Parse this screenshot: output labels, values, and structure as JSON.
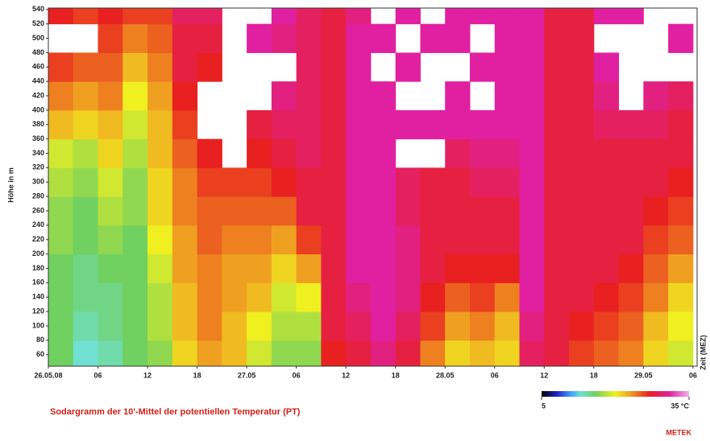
{
  "chart_data": {
    "type": "heatmap",
    "title": "Sodargramm der 10'-Mittel der potentiellen Temperatur (PT)",
    "ylabel": "Höhe in m",
    "xlabel": "Zeit (MEZ)",
    "brand": "METEK",
    "xlim": [
      0,
      78.5
    ],
    "ylim": [
      44,
      542
    ],
    "xticks": [
      {
        "value": 0,
        "label": "26.05.08"
      },
      {
        "value": 6,
        "label": "06"
      },
      {
        "value": 12,
        "label": "12"
      },
      {
        "value": 18,
        "label": "18"
      },
      {
        "value": 24,
        "label": "27.05"
      },
      {
        "value": 30,
        "label": "06"
      },
      {
        "value": 36,
        "label": "12"
      },
      {
        "value": 42,
        "label": "18"
      },
      {
        "value": 48,
        "label": "28.05"
      },
      {
        "value": 54,
        "label": "06"
      },
      {
        "value": 60,
        "label": "12"
      },
      {
        "value": 66,
        "label": "18"
      },
      {
        "value": 72,
        "label": "29.05"
      },
      {
        "value": 78,
        "label": "06"
      }
    ],
    "yticks": [
      60,
      80,
      100,
      120,
      140,
      160,
      180,
      200,
      220,
      240,
      260,
      280,
      300,
      320,
      340,
      360,
      380,
      400,
      420,
      440,
      460,
      480,
      500,
      520,
      540
    ],
    "x_bins": [
      0,
      3,
      6,
      9,
      12,
      15,
      18,
      21,
      24,
      27,
      30,
      33,
      36,
      39,
      42,
      45,
      48,
      51,
      54,
      57,
      60,
      63,
      66,
      69,
      72,
      75,
      78
    ],
    "y_bins": [
      44,
      80,
      120,
      160,
      200,
      240,
      280,
      320,
      360,
      400,
      440,
      480,
      520,
      542
    ],
    "values": [
      [
        16,
        16,
        16,
        16,
        17,
        17,
        18,
        19,
        22,
        24,
        26,
        null,
        27
      ],
      [
        13,
        14,
        15,
        15,
        16,
        16,
        17,
        18,
        21,
        23,
        25,
        null,
        26
      ],
      [
        14,
        15,
        15,
        16,
        17,
        18,
        19,
        21,
        22,
        24,
        25,
        26,
        27
      ],
      [
        16,
        16,
        16,
        16,
        16,
        17,
        17,
        18,
        19,
        20,
        22,
        24,
        26
      ],
      [
        17,
        18,
        18,
        19,
        20,
        21,
        21,
        22,
        22,
        23,
        24,
        25,
        26
      ],
      [
        21,
        22,
        22,
        23,
        23,
        24,
        24,
        25,
        26,
        27,
        28,
        28,
        29
      ],
      [
        23,
        24,
        24,
        24,
        25,
        25,
        26,
        27,
        null,
        null,
        27,
        28,
        29
      ],
      [
        22,
        22,
        23,
        23,
        24,
        25,
        26,
        null,
        null,
        null,
        null,
        null,
        null
      ],
      [
        19,
        20,
        22,
        23,
        24,
        25,
        26,
        27,
        28,
        null,
        null,
        31,
        null
      ],
      [
        17,
        18,
        19,
        21,
        23,
        25,
        27,
        28,
        29,
        30,
        null,
        30,
        31
      ],
      [
        17,
        18,
        20,
        23,
        26,
        28,
        28,
        29,
        29,
        29,
        29,
        29,
        29
      ],
      [
        27,
        28,
        28,
        28,
        28,
        28,
        28,
        28,
        28,
        28,
        28,
        28,
        28
      ],
      [
        28,
        29,
        30,
        31,
        31,
        31,
        31,
        31,
        31,
        31,
        31,
        31,
        30
      ],
      [
        30,
        31,
        31,
        31,
        31,
        31,
        31,
        31,
        31,
        31,
        null,
        31,
        null
      ],
      [
        28,
        29,
        30,
        30,
        30,
        29,
        29,
        null,
        31,
        null,
        31,
        null,
        31
      ],
      [
        24,
        26,
        27,
        28,
        28,
        28,
        28,
        null,
        31,
        null,
        null,
        31,
        null
      ],
      [
        21,
        23,
        25,
        27,
        28,
        28,
        28,
        29,
        31,
        31,
        null,
        31,
        31
      ],
      [
        22,
        24,
        26,
        27,
        28,
        28,
        29,
        30,
        31,
        null,
        31,
        null,
        31
      ],
      [
        21,
        22,
        24,
        27,
        28,
        28,
        29,
        30,
        31,
        31,
        31,
        31,
        31
      ],
      [
        29,
        30,
        31,
        31,
        31,
        31,
        31,
        31,
        31,
        31,
        31,
        31,
        31
      ],
      [
        28,
        28,
        28,
        28,
        28,
        28,
        28,
        28,
        28,
        28,
        28,
        28,
        28
      ],
      [
        26,
        27,
        28,
        28,
        28,
        28,
        28,
        28,
        28,
        28,
        28,
        28,
        28
      ],
      [
        25,
        26,
        27,
        28,
        28,
        28,
        28,
        28,
        29,
        30,
        31,
        null,
        31
      ],
      [
        24,
        25,
        26,
        27,
        28,
        28,
        28,
        28,
        29,
        null,
        null,
        null,
        31
      ],
      [
        21,
        22,
        24,
        25,
        26,
        27,
        28,
        28,
        29,
        30,
        null,
        null,
        null
      ],
      [
        19,
        20,
        21,
        23,
        25,
        26,
        27,
        28,
        28,
        29,
        null,
        31,
        null
      ]
    ],
    "colorscale": [
      {
        "value": 5,
        "color": "#000000"
      },
      {
        "value": 8,
        "color": "#2020c0"
      },
      {
        "value": 11,
        "color": "#40a0ff"
      },
      {
        "value": 13,
        "color": "#70e0d0"
      },
      {
        "value": 16,
        "color": "#70d060"
      },
      {
        "value": 20,
        "color": "#f0f020"
      },
      {
        "value": 23,
        "color": "#f0a020"
      },
      {
        "value": 27,
        "color": "#e82020"
      },
      {
        "value": 31,
        "color": "#e020a0"
      },
      {
        "value": 35,
        "color": "#f0b0f0"
      }
    ],
    "colorbar_ticks": [
      5,
      {
        "value": 35,
        "label": "35 °C"
      }
    ]
  }
}
